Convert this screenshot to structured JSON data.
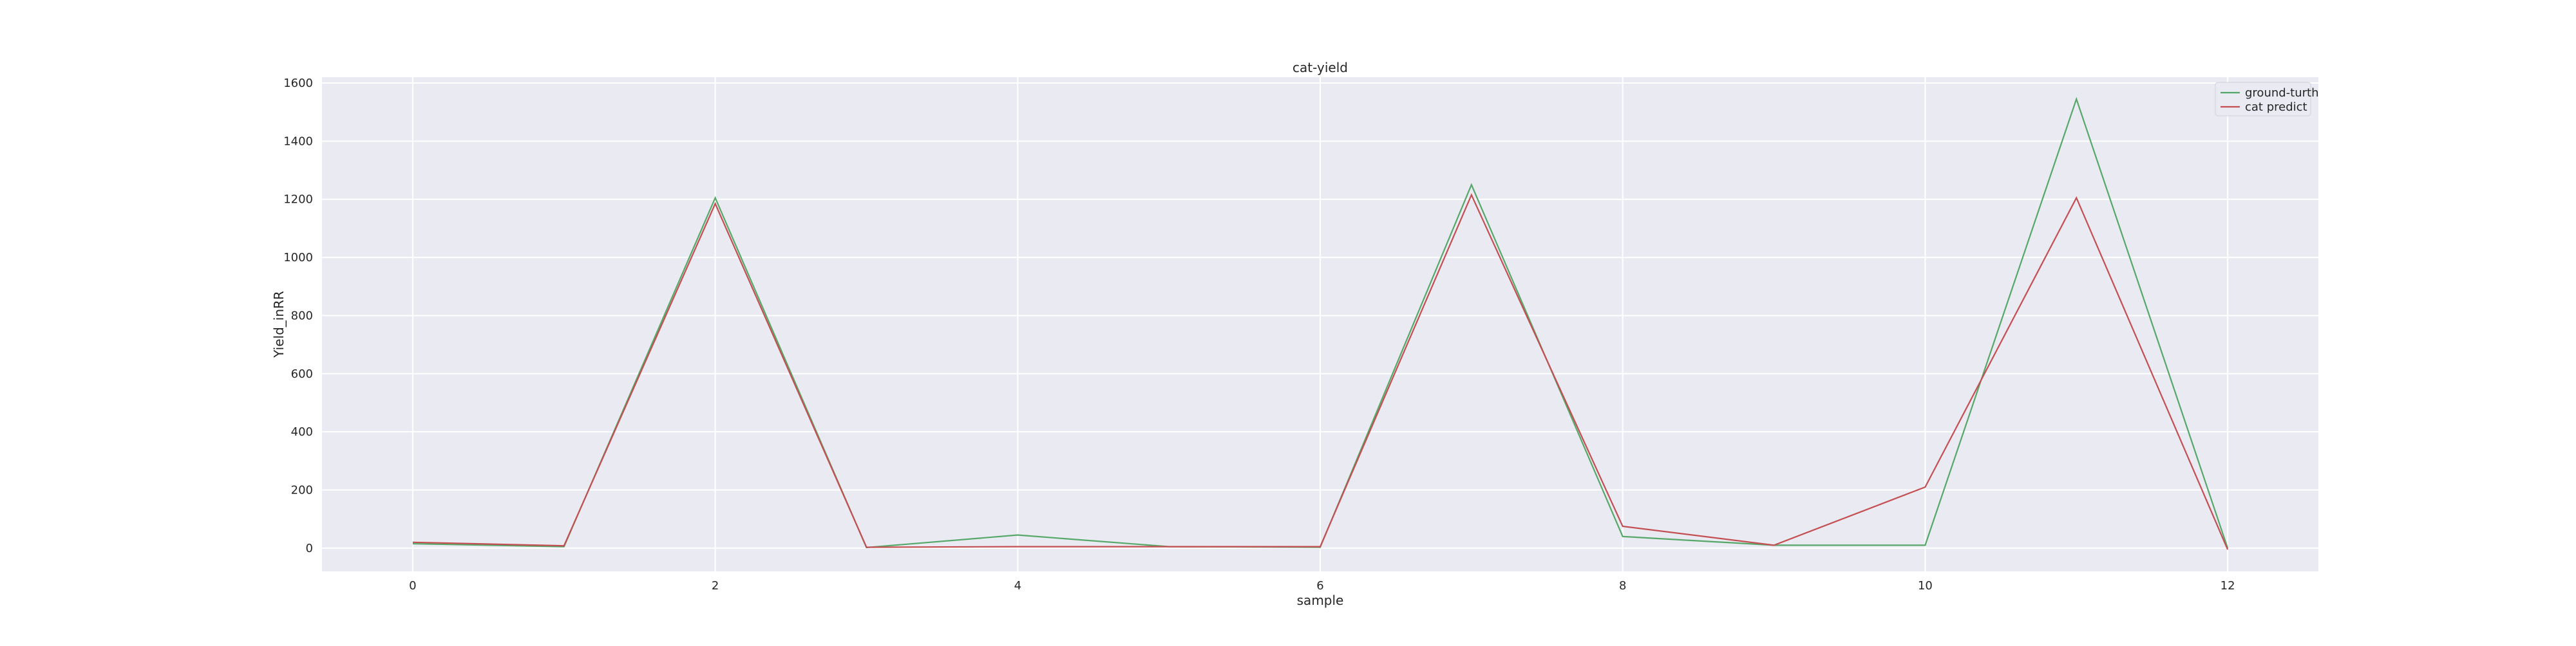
{
  "chart_data": {
    "type": "line",
    "title": "cat-yield",
    "xlabel": "sample",
    "ylabel": "Yield_inRR",
    "x": [
      0,
      1,
      2,
      3,
      4,
      5,
      6,
      7,
      8,
      9,
      10,
      11,
      12
    ],
    "xlim": [
      -0.6,
      12.6
    ],
    "ylim": [
      -80,
      1620
    ],
    "xticks": [
      0,
      2,
      4,
      6,
      8,
      10,
      12
    ],
    "yticks": [
      0,
      200,
      400,
      600,
      800,
      1000,
      1200,
      1400,
      1600
    ],
    "grid": true,
    "legend_position": "top-right",
    "series": [
      {
        "name": "ground-turth",
        "color": "#55a868",
        "values": [
          15,
          5,
          1205,
          2,
          45,
          5,
          3,
          1250,
          40,
          10,
          10,
          1545,
          0
        ]
      },
      {
        "name": "cat predict",
        "color": "#c44e52",
        "values": [
          20,
          8,
          1185,
          3,
          5,
          5,
          5,
          1215,
          75,
          10,
          210,
          1205,
          -5
        ]
      }
    ],
    "background": "#eaeaf2"
  }
}
